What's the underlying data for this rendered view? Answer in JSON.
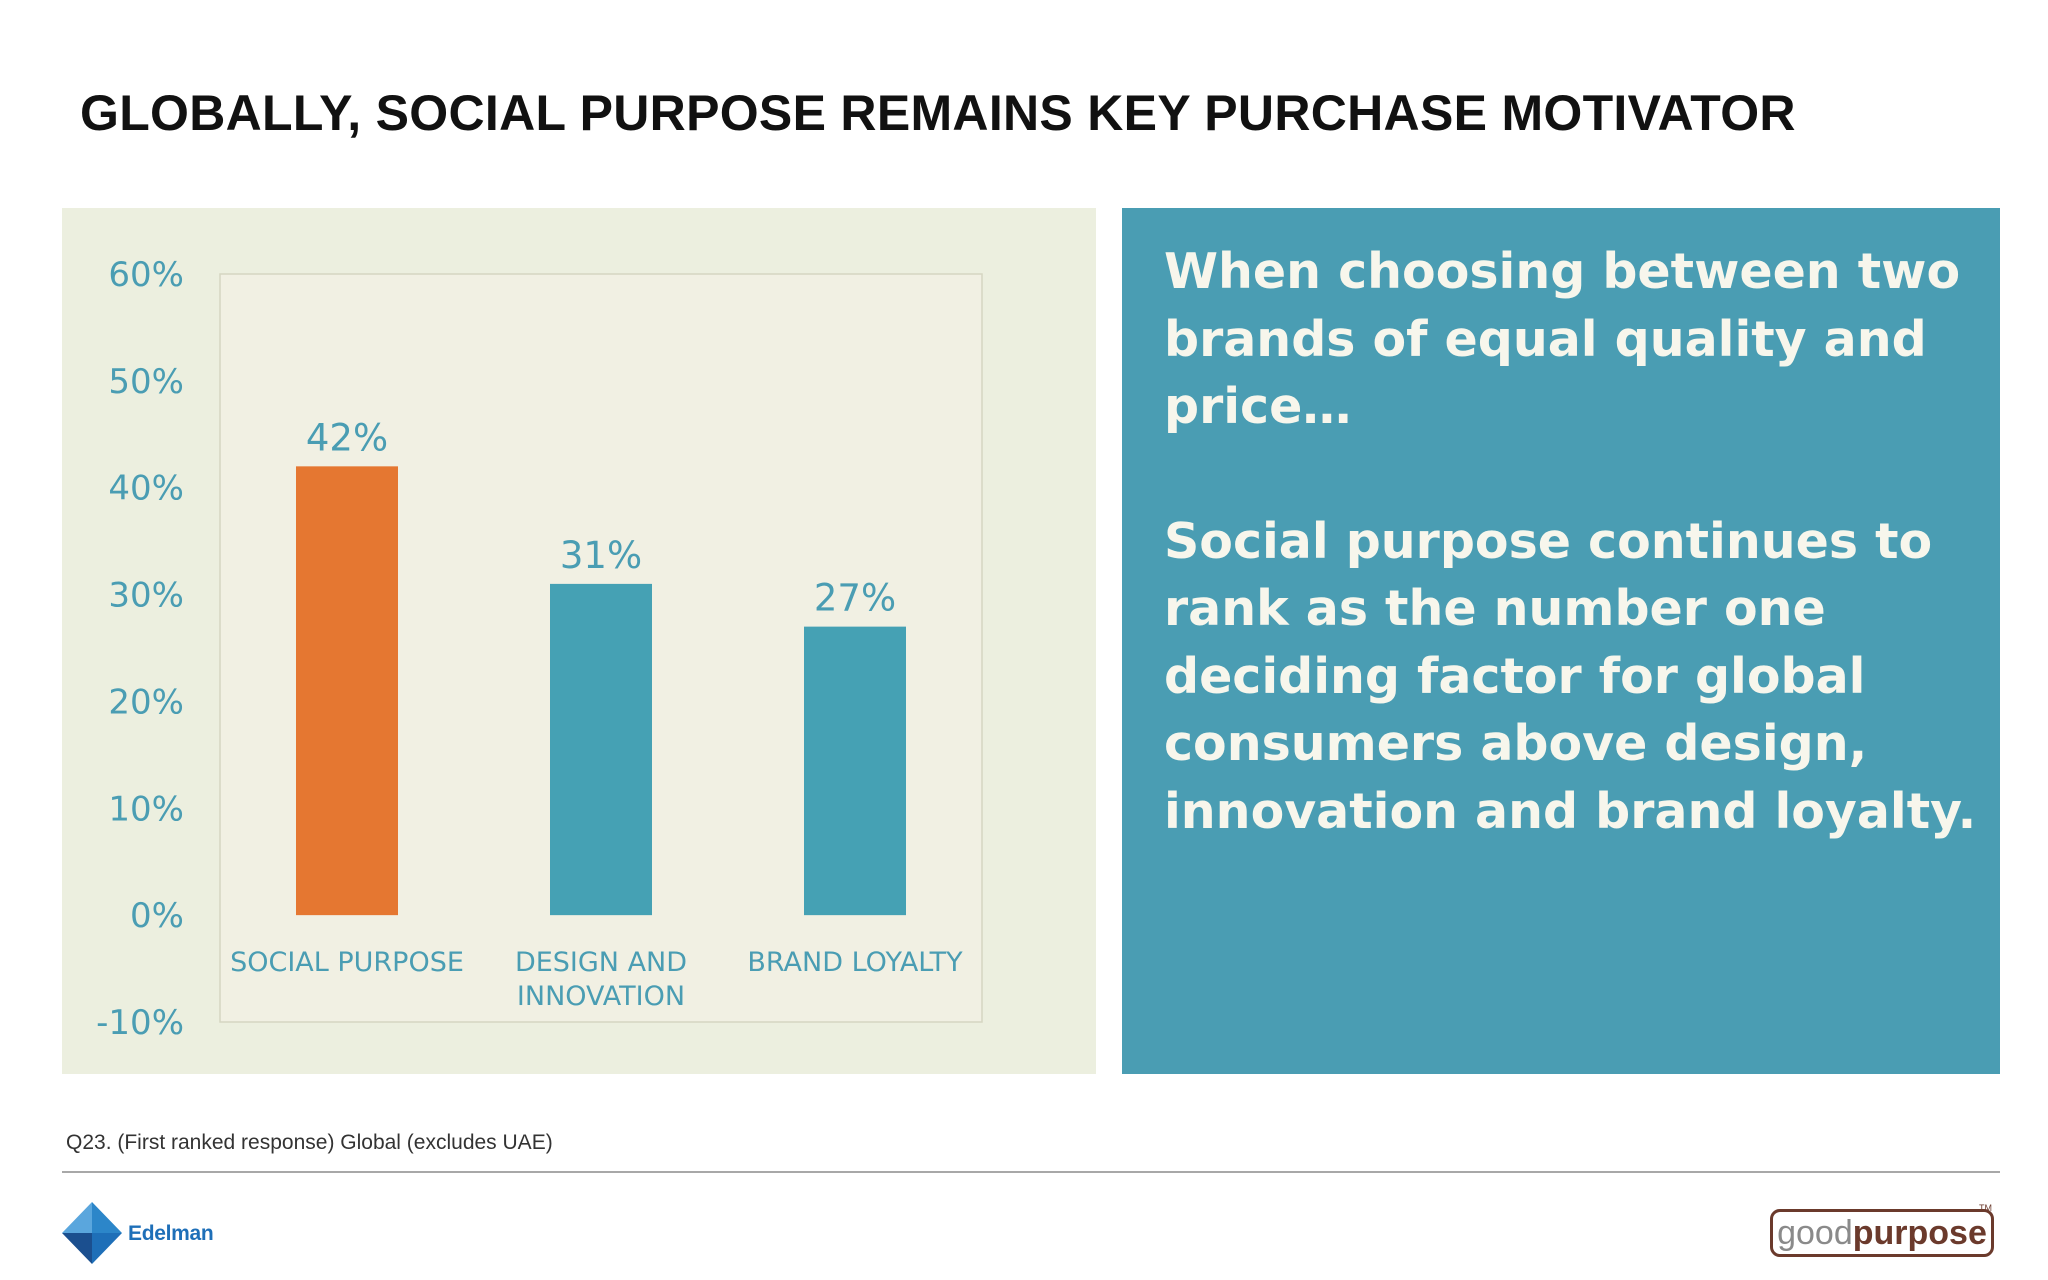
{
  "slide": {
    "title": "GLOBALLY, SOCIAL PURPOSE REMAINS KEY PURCHASE MOTIVATOR",
    "footnote": "Q23. (First ranked response) Global (excludes UAE)"
  },
  "panel": {
    "paragraph1": "When choosing between two brands of equal quality and price…",
    "paragraph2": "Social purpose continues to rank as the number one deciding factor for global consumers above design, innovation and brand loyalty."
  },
  "logos": {
    "edelman": "Edelman",
    "goodpurpose_a": "good",
    "goodpurpose_b": "purpose",
    "goodpurpose_tm": "TM"
  },
  "colors": {
    "chart_panel_bg": "#ecefdf",
    "plot_bg": "#f1f0e3",
    "highlight_bar": "#e57731",
    "default_bar": "#45a1b4",
    "axis_text": "#4a9db3",
    "text_panel_bg": "#4a9db3"
  },
  "chart_data": {
    "type": "bar",
    "categories": [
      "SOCIAL PURPOSE",
      "DESIGN AND INNOVATION",
      "BRAND LOYALTY"
    ],
    "category_lines": [
      [
        "SOCIAL PURPOSE"
      ],
      [
        "DESIGN AND",
        "INNOVATION"
      ],
      [
        "BRAND LOYALTY"
      ]
    ],
    "values": [
      42,
      31,
      27
    ],
    "value_labels": [
      "42%",
      "31%",
      "27%"
    ],
    "highlight_index": 0,
    "yticks": [
      60,
      50,
      40,
      30,
      20,
      10,
      0,
      -10
    ],
    "ytick_labels": [
      "60%",
      "50%",
      "40%",
      "30%",
      "20%",
      "10%",
      "0%",
      "-10%"
    ],
    "ylim": [
      -10,
      60
    ],
    "title": "",
    "xlabel": "",
    "ylabel": "",
    "grid": false,
    "legend": "none"
  }
}
